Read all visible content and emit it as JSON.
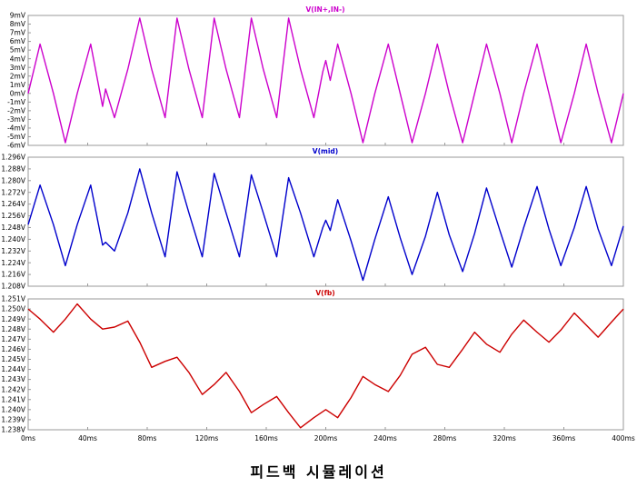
{
  "caption": "피드백 시뮬레이션",
  "chart_data": [
    {
      "type": "line",
      "title": "V(IN+,IN-)",
      "color": "#cc00cc",
      "ylim": [
        -6,
        9
      ],
      "yticks": [
        "9mV",
        "8mV",
        "7mV",
        "6mV",
        "5mV",
        "4mV",
        "3mV",
        "2mV",
        "1mV",
        "0mV",
        "-1mV",
        "-2mV",
        "-3mV",
        "-4mV",
        "-5mV",
        "-6mV"
      ],
      "xlim": [
        0,
        400
      ],
      "xticks": [
        "0ms",
        "40ms",
        "80ms",
        "120ms",
        "160ms",
        "200ms",
        "240ms",
        "280ms",
        "320ms",
        "360ms",
        "400ms"
      ],
      "series": [
        {
          "x": [
            0,
            8,
            17,
            25,
            33,
            42,
            50,
            52,
            58,
            67,
            75,
            83,
            92,
            100,
            108,
            117,
            125,
            133,
            142,
            150,
            158,
            167,
            175,
            183,
            192,
            198,
            200,
            203,
            208,
            217,
            225,
            233,
            242,
            250,
            258,
            267,
            275,
            283,
            292,
            300,
            308,
            317,
            325,
            333,
            342,
            350,
            358,
            367,
            375,
            383,
            392,
            400
          ],
          "y": [
            0,
            5.7,
            0,
            -5.7,
            0,
            5.7,
            -1.5,
            0.5,
            -2.8,
            2.8,
            8.7,
            2.8,
            -2.8,
            8.7,
            2.8,
            -2.8,
            8.7,
            2.8,
            -2.8,
            8.7,
            2.8,
            -2.8,
            8.7,
            2.8,
            -2.8,
            2.5,
            3.8,
            1.5,
            5.7,
            0,
            -5.7,
            0,
            5.7,
            0,
            -5.7,
            0,
            5.7,
            0,
            -5.7,
            0,
            5.7,
            0,
            -5.7,
            0,
            5.7,
            0,
            -5.7,
            0,
            5.7,
            0,
            -5.7,
            0
          ]
        }
      ]
    },
    {
      "type": "line",
      "title": "V(mid)",
      "color": "#0000cc",
      "ylim": [
        1.208,
        1.296
      ],
      "yticks": [
        "1.296V",
        "1.288V",
        "1.280V",
        "1.272V",
        "1.264V",
        "1.256V",
        "1.248V",
        "1.240V",
        "1.232V",
        "1.224V",
        "1.216V",
        "1.208V"
      ],
      "xlim": [
        0,
        400
      ],
      "xticks": [
        "0ms",
        "40ms",
        "80ms",
        "120ms",
        "160ms",
        "200ms",
        "240ms",
        "280ms",
        "320ms",
        "360ms",
        "400ms"
      ],
      "series": [
        {
          "x": [
            0,
            8,
            17,
            25,
            33,
            42,
            50,
            52,
            58,
            67,
            75,
            83,
            92,
            100,
            108,
            117,
            125,
            133,
            142,
            150,
            158,
            167,
            175,
            183,
            192,
            198,
            200,
            203,
            208,
            217,
            225,
            233,
            242,
            250,
            258,
            267,
            275,
            283,
            292,
            300,
            308,
            317,
            325,
            333,
            342,
            350,
            358,
            367,
            375,
            383,
            392,
            400
          ],
          "y": [
            1.25,
            1.277,
            1.25,
            1.222,
            1.25,
            1.277,
            1.236,
            1.238,
            1.232,
            1.258,
            1.288,
            1.258,
            1.228,
            1.286,
            1.258,
            1.228,
            1.285,
            1.258,
            1.228,
            1.284,
            1.258,
            1.228,
            1.282,
            1.258,
            1.228,
            1.248,
            1.253,
            1.246,
            1.267,
            1.239,
            1.212,
            1.24,
            1.269,
            1.241,
            1.216,
            1.242,
            1.272,
            1.243,
            1.218,
            1.244,
            1.275,
            1.246,
            1.221,
            1.248,
            1.276,
            1.247,
            1.222,
            1.248,
            1.276,
            1.247,
            1.222,
            1.249
          ]
        }
      ]
    },
    {
      "type": "line",
      "title": "V(fb)",
      "color": "#cc0000",
      "ylim": [
        1.238,
        1.251
      ],
      "yticks": [
        "1.251V",
        "1.250V",
        "1.249V",
        "1.248V",
        "1.247V",
        "1.246V",
        "1.245V",
        "1.244V",
        "1.243V",
        "1.242V",
        "1.241V",
        "1.240V",
        "1.239V",
        "1.238V"
      ],
      "xlim": [
        0,
        400
      ],
      "xticks": [
        "0ms",
        "40ms",
        "80ms",
        "120ms",
        "160ms",
        "200ms",
        "240ms",
        "280ms",
        "320ms",
        "360ms",
        "400ms"
      ],
      "series": [
        {
          "x": [
            0,
            8,
            17,
            25,
            33,
            42,
            50,
            58,
            67,
            75,
            83,
            92,
            100,
            108,
            117,
            125,
            133,
            142,
            150,
            158,
            167,
            175,
            183,
            192,
            200,
            208,
            217,
            225,
            233,
            242,
            250,
            258,
            267,
            275,
            283,
            292,
            300,
            308,
            317,
            325,
            333,
            342,
            350,
            358,
            367,
            375,
            383,
            392,
            400
          ],
          "y": [
            1.25,
            1.249,
            1.2477,
            1.249,
            1.2505,
            1.249,
            1.248,
            1.2482,
            1.2488,
            1.2467,
            1.2442,
            1.2448,
            1.2452,
            1.2437,
            1.2415,
            1.2425,
            1.2437,
            1.2418,
            1.2397,
            1.2405,
            1.2413,
            1.2397,
            1.2382,
            1.2392,
            1.24,
            1.2392,
            1.2412,
            1.2433,
            1.2425,
            1.2418,
            1.2434,
            1.2455,
            1.2462,
            1.2445,
            1.2442,
            1.246,
            1.2477,
            1.2465,
            1.2457,
            1.2475,
            1.2489,
            1.2477,
            1.2467,
            1.2479,
            1.2496,
            1.2484,
            1.2472,
            1.2487,
            1.25
          ]
        }
      ]
    }
  ]
}
